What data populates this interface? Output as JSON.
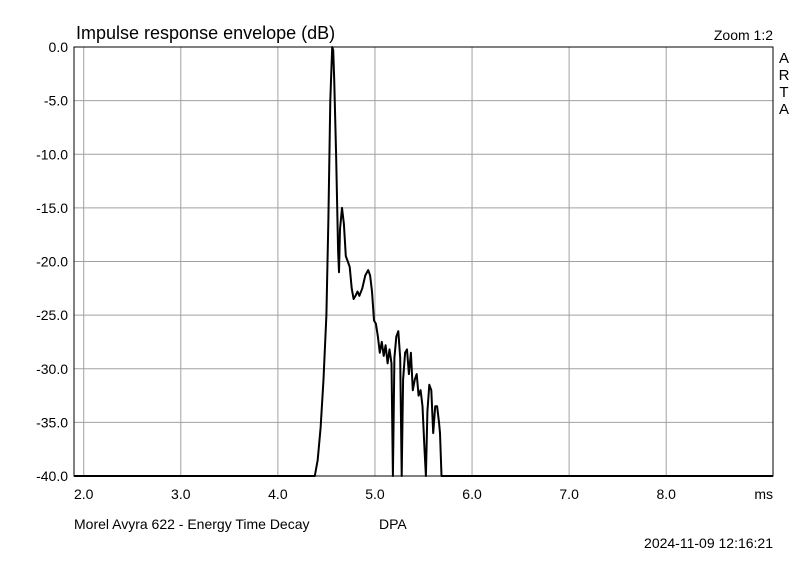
{
  "header": {
    "title": "Impulse response envelope (dB)",
    "zoom": "Zoom 1:2",
    "brand_letters": [
      "A",
      "R",
      "T",
      "A"
    ]
  },
  "footer": {
    "description": "Morel Avyra 622 - Energy Time Decay",
    "dpa": "DPA",
    "timestamp": "2024-11-09  12:16:21"
  },
  "chart_data": {
    "type": "line",
    "title": "Impulse response envelope (dB)",
    "xlabel": "ms",
    "ylabel": "",
    "xlim": [
      1.9,
      9.1
    ],
    "ylim": [
      -40,
      0
    ],
    "grid": true,
    "line_color": "#000000",
    "grid_color": "#a0a0a0",
    "x_ticks": [
      2.0,
      3.0,
      4.0,
      5.0,
      6.0,
      7.0,
      8.0
    ],
    "x_tick_labels": [
      "2.0",
      "3.0",
      "4.0",
      "5.0",
      "6.0",
      "7.0",
      "8.0"
    ],
    "y_ticks": [
      0,
      -5,
      -10,
      -15,
      -20,
      -25,
      -30,
      -35,
      -40
    ],
    "y_tick_labels": [
      "0.0",
      "-5.0",
      "-10.0",
      "-15.0",
      "-20.0",
      "-25.0",
      "-30.0",
      "-35.0",
      "-40.0"
    ],
    "series": [
      {
        "points": [
          [
            1.9,
            -40
          ],
          [
            4.38,
            -40
          ],
          [
            4.41,
            -38.5
          ],
          [
            4.44,
            -35.5
          ],
          [
            4.47,
            -31
          ],
          [
            4.5,
            -25
          ],
          [
            4.52,
            -16
          ],
          [
            4.54,
            -5
          ],
          [
            4.56,
            0
          ],
          [
            4.57,
            -0.3
          ],
          [
            4.58,
            -3
          ],
          [
            4.6,
            -10
          ],
          [
            4.62,
            -19
          ],
          [
            4.63,
            -21
          ],
          [
            4.64,
            -17
          ],
          [
            4.66,
            -15
          ],
          [
            4.68,
            -16.5
          ],
          [
            4.7,
            -19.5
          ],
          [
            4.72,
            -20
          ],
          [
            4.74,
            -20.5
          ],
          [
            4.76,
            -22.5
          ],
          [
            4.78,
            -23.5
          ],
          [
            4.8,
            -23.2
          ],
          [
            4.82,
            -22.8
          ],
          [
            4.84,
            -23.2
          ],
          [
            4.87,
            -22.5
          ],
          [
            4.9,
            -21.3
          ],
          [
            4.93,
            -20.8
          ],
          [
            4.95,
            -21.3
          ],
          [
            4.97,
            -22.8
          ],
          [
            4.99,
            -25.5
          ],
          [
            5.01,
            -25.8
          ],
          [
            5.03,
            -27
          ],
          [
            5.05,
            -28.5
          ],
          [
            5.07,
            -27.5
          ],
          [
            5.09,
            -28.8
          ],
          [
            5.11,
            -27.8
          ],
          [
            5.13,
            -29.5
          ],
          [
            5.15,
            -28.2
          ],
          [
            5.17,
            -29.5
          ],
          [
            5.185,
            -40
          ],
          [
            5.2,
            -29
          ],
          [
            5.22,
            -27
          ],
          [
            5.24,
            -26.5
          ],
          [
            5.26,
            -29
          ],
          [
            5.275,
            -40
          ],
          [
            5.29,
            -31
          ],
          [
            5.31,
            -28.5
          ],
          [
            5.33,
            -28.2
          ],
          [
            5.35,
            -30.5
          ],
          [
            5.37,
            -28.5
          ],
          [
            5.39,
            -32
          ],
          [
            5.41,
            -31
          ],
          [
            5.43,
            -30.5
          ],
          [
            5.45,
            -32.5
          ],
          [
            5.47,
            -32
          ],
          [
            5.49,
            -33.5
          ],
          [
            5.51,
            -37.5
          ],
          [
            5.525,
            -40
          ],
          [
            5.54,
            -34
          ],
          [
            5.56,
            -31.5
          ],
          [
            5.58,
            -32
          ],
          [
            5.6,
            -36
          ],
          [
            5.62,
            -33.5
          ],
          [
            5.64,
            -33.5
          ],
          [
            5.66,
            -35
          ],
          [
            5.67,
            -36
          ],
          [
            5.685,
            -40
          ],
          [
            9.1,
            -40
          ]
        ]
      }
    ]
  }
}
